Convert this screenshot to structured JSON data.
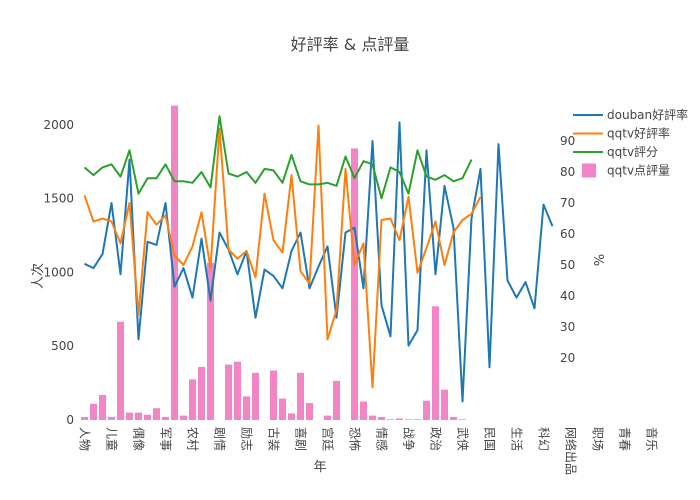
{
  "chart_data": {
    "type": "bar+line",
    "title": "好評率 & 点評量",
    "xlabel": "年",
    "ylabel_left": "人次",
    "ylabel_right": "%",
    "ylim_left": [
      0,
      2100
    ],
    "ylim_right": [
      0,
      100
    ],
    "yticks_left": [
      0,
      500,
      1000,
      1500,
      2000
    ],
    "yticks_right": [
      20,
      30,
      40,
      50,
      60,
      70,
      80,
      90
    ],
    "grid": false,
    "legend_position": "right",
    "x_labels": [
      {
        "index": 0,
        "label": "人物"
      },
      {
        "index": 3,
        "label": "儿童"
      },
      {
        "index": 6,
        "label": "偶像"
      },
      {
        "index": 9,
        "label": "军事"
      },
      {
        "index": 12,
        "label": "农村"
      },
      {
        "index": 15,
        "label": "剧情"
      },
      {
        "index": 18,
        "label": "励志"
      },
      {
        "index": 21,
        "label": "古装"
      },
      {
        "index": 24,
        "label": "喜剧"
      },
      {
        "index": 27,
        "label": "宫廷"
      },
      {
        "index": 30,
        "label": "恐怖"
      },
      {
        "index": 33,
        "label": "情感"
      },
      {
        "index": 36,
        "label": "战争"
      },
      {
        "index": 39,
        "label": "政治"
      },
      {
        "index": 42,
        "label": "武侠"
      },
      {
        "index": 45,
        "label": "民国"
      },
      {
        "index": 48,
        "label": "生活"
      },
      {
        "index": 51,
        "label": "科幻"
      },
      {
        "index": 54,
        "label": "网络出品"
      },
      {
        "index": 57,
        "label": "职场"
      },
      {
        "index": 60,
        "label": "青春"
      },
      {
        "index": 63,
        "label": "音乐"
      }
    ],
    "series": [
      {
        "name": "douban好評率",
        "type": "line",
        "axis": "right",
        "color": "#1f77b4",
        "values": [
          50.4,
          49,
          53.5,
          70,
          47,
          84,
          26,
          57.5,
          56.5,
          70,
          43,
          49,
          39.5,
          58.5,
          38.5,
          60.5,
          55,
          47,
          54.5,
          33,
          48.5,
          46.5,
          42.5,
          54.5,
          60.5,
          42.5,
          49.5,
          56,
          33,
          60.5,
          62,
          42.5,
          90,
          37,
          27,
          96,
          24,
          29,
          87,
          47,
          75.5,
          62,
          6,
          65,
          81,
          17,
          89,
          45,
          39.5,
          44.5,
          36,
          69.5,
          62.5
        ]
      },
      {
        "name": "qqtv好評率",
        "type": "line",
        "axis": "right",
        "color": "#ff7f0e",
        "values": [
          72.5,
          64,
          65,
          64,
          57,
          70,
          34,
          67,
          63,
          66,
          53,
          50,
          56,
          67,
          49,
          94,
          55,
          52,
          54.5,
          46,
          73,
          58,
          54,
          79,
          48,
          44,
          95,
          26,
          35.5,
          81,
          50,
          57,
          10.5,
          64.5,
          65,
          58,
          72,
          47.5,
          55.5,
          64,
          50,
          60.5,
          64.5,
          66.5,
          72
        ]
      },
      {
        "name": "qqtv評分",
        "type": "line",
        "axis": "right",
        "color": "#2ca02c",
        "values": [
          81.5,
          79,
          81.5,
          82.5,
          78.5,
          87,
          73,
          78,
          78,
          82.5,
          77,
          77,
          76.5,
          80,
          75,
          98,
          79.5,
          78.5,
          80,
          76.5,
          81,
          80.5,
          76.5,
          85.5,
          77,
          76,
          76,
          76.5,
          75.5,
          85,
          78,
          83.5,
          82.5,
          71.5,
          81.5,
          80,
          73,
          87,
          78.5,
          77.5,
          79,
          77,
          78,
          84
        ]
      },
      {
        "name": "qqtv点評量",
        "type": "bar",
        "axis": "left",
        "color": "#f285c5",
        "values": [
          20,
          110,
          170,
          20,
          665,
          50,
          50,
          35,
          80,
          20,
          2130,
          30,
          275,
          360,
          1065,
          0,
          375,
          395,
          160,
          320,
          0,
          335,
          145,
          45,
          320,
          115,
          0,
          30,
          265,
          0,
          1840,
          125,
          30,
          20,
          5,
          10,
          5,
          5,
          130,
          770,
          205,
          20,
          5
        ]
      }
    ]
  }
}
